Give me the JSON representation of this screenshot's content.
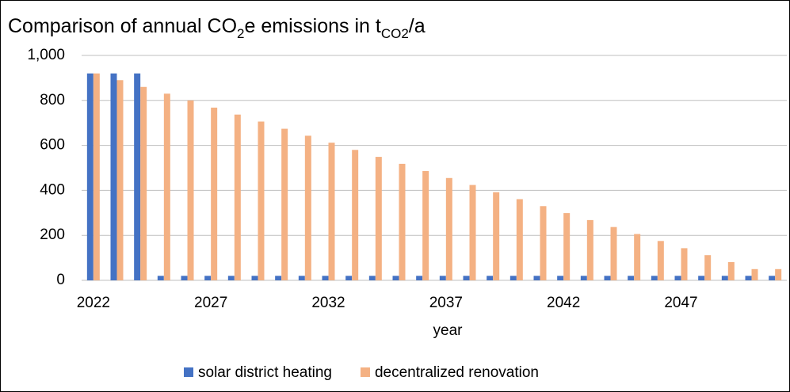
{
  "chart_data": {
    "type": "bar",
    "title": [
      {
        "text": "Comparison of annual CO"
      },
      {
        "text": "2",
        "sub": true
      },
      {
        "text": "e emissions in t"
      },
      {
        "text": "CO2",
        "sub": true
      },
      {
        "text": "/a"
      }
    ],
    "x_label": "year",
    "categories": [
      "2022",
      null,
      null,
      null,
      null,
      "2027",
      null,
      null,
      null,
      null,
      "2032",
      null,
      null,
      null,
      null,
      "2037",
      null,
      null,
      null,
      null,
      "2042",
      null,
      null,
      null,
      null,
      "2047",
      null,
      null,
      null,
      null
    ],
    "series": [
      {
        "name": "solar district heating",
        "color": "#4472c4",
        "values": [
          920,
          920,
          920,
          20,
          20,
          20,
          20,
          20,
          20,
          20,
          20,
          20,
          20,
          20,
          20,
          20,
          20,
          20,
          20,
          20,
          20,
          20,
          20,
          20,
          20,
          20,
          20,
          20,
          20,
          20
        ]
      },
      {
        "name": "decentralized renovation",
        "color": "#f4b183",
        "values": [
          920,
          890,
          860,
          830,
          800,
          768,
          737,
          706,
          674,
          643,
          612,
          580,
          549,
          518,
          486,
          455,
          424,
          392,
          361,
          330,
          299,
          268,
          237,
          206,
          175,
          143,
          112,
          81,
          50,
          50
        ]
      }
    ],
    "ylim": [
      0,
      1000
    ],
    "yticks": [
      0,
      200,
      400,
      600,
      800,
      {
        "value": 1000,
        "label": "1,000"
      }
    ],
    "grid": true,
    "legend": "bottom"
  }
}
